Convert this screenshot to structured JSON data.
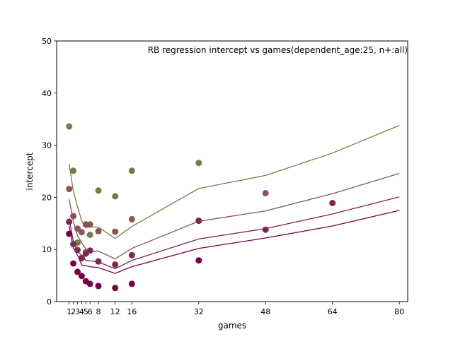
{
  "chart_data": {
    "type": "scatter",
    "title": "RB regression intercept vs games(dependent_age:25, n+:all)",
    "xlabel": "games",
    "ylabel": "intercept",
    "xlim": [
      -2,
      82
    ],
    "ylim": [
      0,
      50
    ],
    "xticks": [
      1,
      2,
      3,
      4,
      5,
      6,
      8,
      12,
      16,
      32,
      48,
      64,
      80
    ],
    "xtick_labels": [
      "1",
      "2",
      "3",
      "4",
      "5",
      "6",
      "8",
      "12",
      "16",
      "32",
      "48",
      "64",
      "80"
    ],
    "yticks": [
      0,
      10,
      20,
      30,
      40,
      50
    ],
    "ytick_labels": [
      "0",
      "10",
      "20",
      "30",
      "40",
      "50"
    ],
    "grid": false,
    "legend": "none",
    "series": [
      {
        "color": "#7a7a46",
        "points": {
          "x": [
            1,
            2,
            3,
            4,
            5,
            6,
            8,
            12,
            16,
            32
          ],
          "y": [
            33.6,
            25.1,
            11.3,
            8.4,
            9.5,
            12.8,
            21.3,
            20.2,
            25.1,
            26.6
          ]
        },
        "line": {
          "x": [
            1,
            2,
            3,
            4,
            5,
            6,
            8,
            12,
            16,
            32,
            48,
            64,
            80
          ],
          "y": [
            26.4,
            21.2,
            18.2,
            15.5,
            14.2,
            14.3,
            14.3,
            12.1,
            14.4,
            21.7,
            24.2,
            28.5,
            33.8
          ]
        }
      },
      {
        "color": "#8a5555",
        "points": {
          "x": [
            1,
            2,
            3,
            4,
            5,
            6,
            8,
            12,
            16,
            32,
            48
          ],
          "y": [
            21.6,
            16.4,
            14.0,
            13.3,
            14.8,
            14.8,
            13.5,
            13.4,
            15.8,
            15.5,
            20.8
          ]
        },
        "line": {
          "x": [
            1,
            2,
            3,
            4,
            5,
            6,
            8,
            12,
            16,
            32,
            48,
            64,
            80
          ],
          "y": [
            19.6,
            15.4,
            12.6,
            11.3,
            10.1,
            9.5,
            9.7,
            8.2,
            10.2,
            15.4,
            17.4,
            20.7,
            24.6
          ]
        }
      },
      {
        "color": "#7a2a55",
        "points": {
          "x": [
            1,
            2,
            3,
            4,
            5,
            6,
            8,
            12,
            16,
            32,
            48,
            64
          ],
          "y": [
            15.3,
            11.0,
            9.9,
            8.3,
            9.2,
            9.8,
            7.7,
            7.1,
            8.9,
            15.5,
            13.8,
            18.9
          ]
        },
        "line": {
          "x": [
            1,
            2,
            3,
            4,
            5,
            6,
            8,
            12,
            16,
            32,
            48,
            64,
            80
          ],
          "y": [
            16.0,
            11.5,
            9.6,
            8.9,
            7.9,
            7.8,
            7.6,
            6.3,
            7.9,
            12.0,
            14.0,
            16.8,
            20.1
          ]
        }
      },
      {
        "color": "#780046",
        "points": {
          "x": [
            1,
            2,
            3,
            4,
            5,
            6,
            8,
            12,
            16,
            32
          ],
          "y": [
            13.0,
            7.3,
            5.7,
            4.9,
            3.9,
            3.4,
            3.0,
            2.6,
            3.4,
            7.9
          ]
        },
        "line": {
          "x": [
            1,
            2,
            3,
            4,
            5,
            6,
            8,
            12,
            16,
            32,
            48,
            64,
            80
          ],
          "y": [
            14.5,
            10.3,
            8.9,
            7.0,
            6.9,
            6.7,
            6.5,
            5.4,
            6.7,
            10.2,
            12.2,
            14.5,
            17.5
          ]
        }
      }
    ]
  }
}
